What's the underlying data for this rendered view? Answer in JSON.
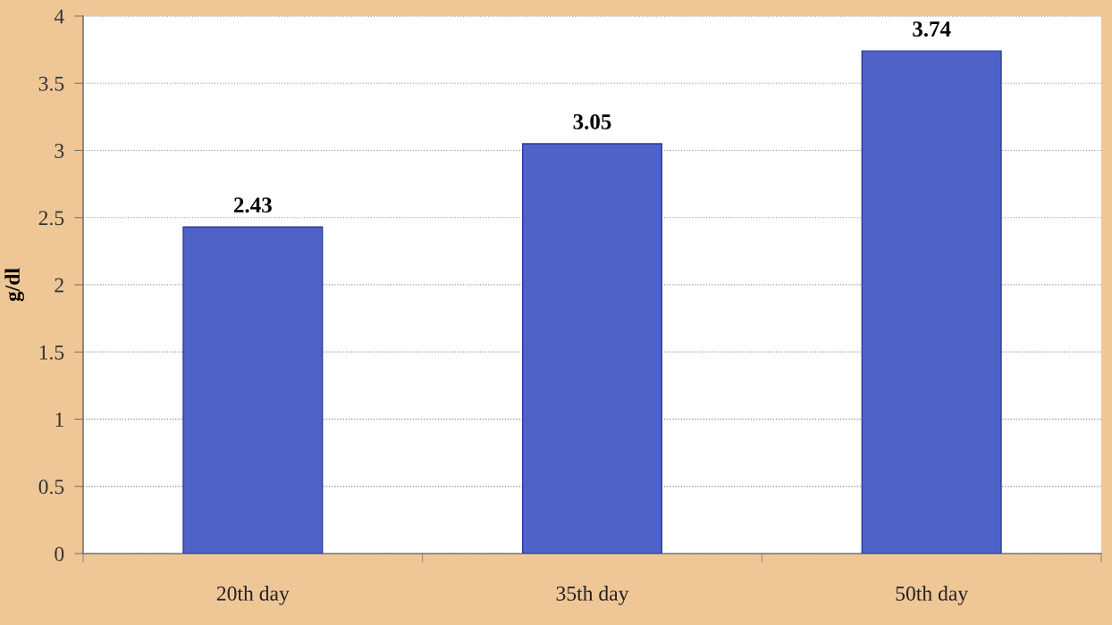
{
  "chart_data": {
    "type": "bar",
    "ylabel": "g/dl",
    "categories": [
      "20th day",
      "35th day",
      "50th day"
    ],
    "values": [
      2.43,
      3.05,
      3.74
    ],
    "color": "#4f62c8",
    "data_labels": true,
    "ylim": [
      0,
      4
    ],
    "yticks": [
      0,
      0.5,
      1,
      1.5,
      2,
      2.5,
      3,
      3.5,
      4
    ],
    "grid": "y",
    "legend": false
  }
}
